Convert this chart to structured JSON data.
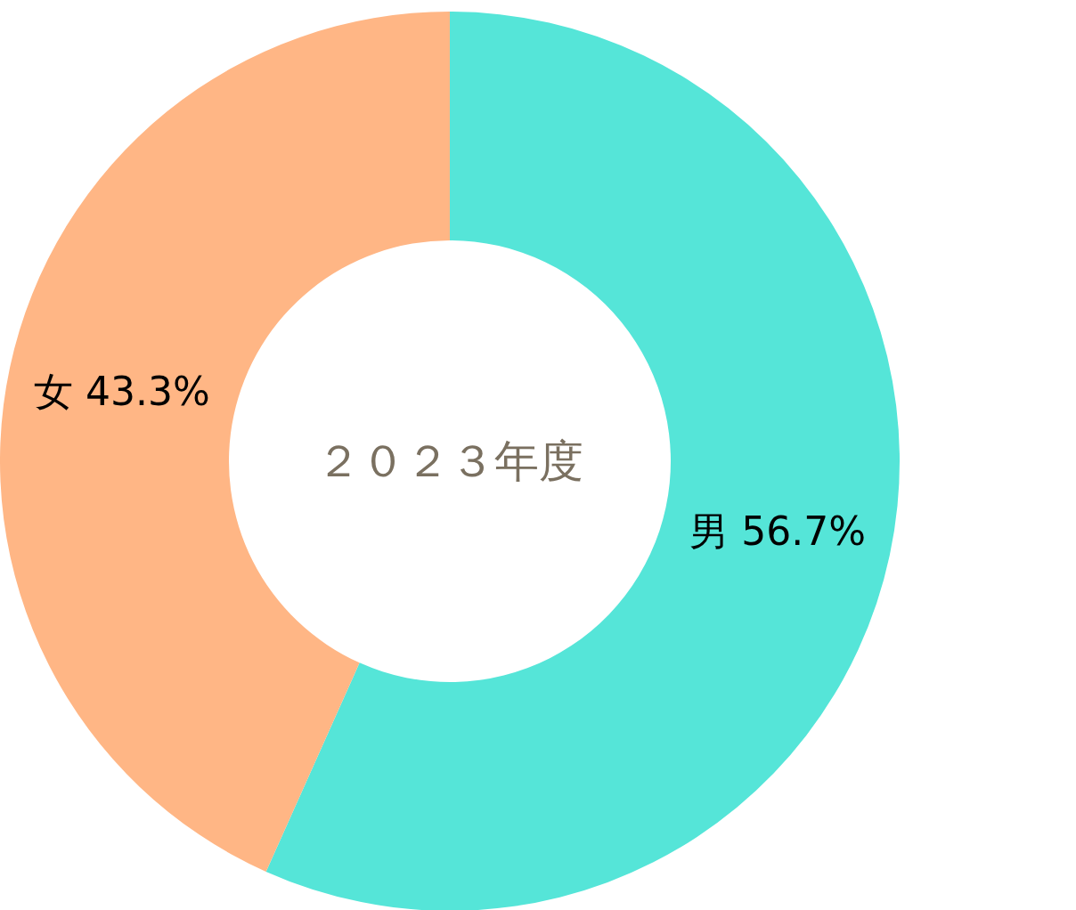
{
  "chart_data": {
    "type": "donut",
    "title": "２０２３年度",
    "categories": [
      "男",
      "女"
    ],
    "values": [
      56.7,
      43.3
    ],
    "value_labels": [
      "56.7%",
      "43.3%"
    ],
    "colors": [
      "#55e5d8",
      "#ffb685"
    ]
  }
}
